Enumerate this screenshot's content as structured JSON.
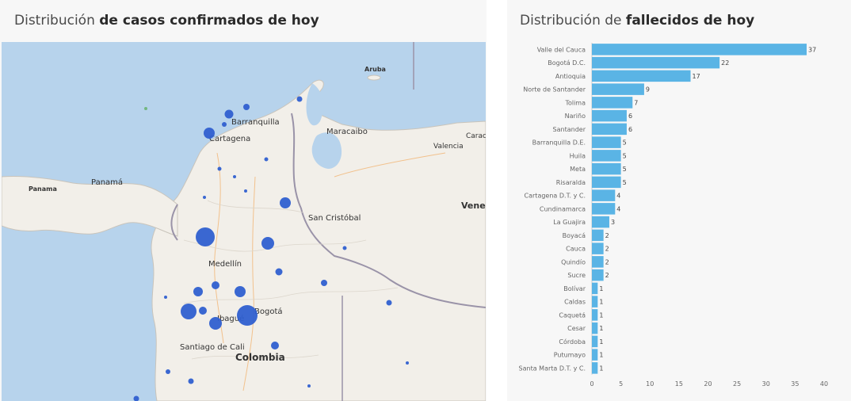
{
  "left_panel": {
    "title_prefix": "Distribución ",
    "title_bold": "de casos confirmados de hoy",
    "map_labels": {
      "aruba": "Aruba",
      "barranquilla": "Barranquilla",
      "cartagena": "Cartagena",
      "maracaibo": "Maracaibo",
      "valencia": "Valencia",
      "carac": "Carac",
      "panama_city": "Panamá",
      "panama_country": "Panama",
      "vene": "Vene",
      "san_cristobal": "San Cristóbal",
      "medellin": "Medellín",
      "ibague": "Ibagué",
      "bogota": "Bogotá",
      "santiago_de_cali": "Santiago de Cali",
      "colombia": "Colombia"
    }
  },
  "right_panel": {
    "title_prefix": "Distribución de ",
    "title_bold": "fallecidos de hoy"
  },
  "colors": {
    "bar": "#5ab4e5",
    "bubble": "#2f5fd0",
    "water": "#b7d3ec",
    "land": "#f2efe9"
  },
  "chart_data": {
    "type": "bar",
    "orientation": "horizontal",
    "categories": [
      "Valle del Cauca",
      "Bogotá D.C.",
      "Antioquia",
      "Norte de Santander",
      "Tolima",
      "Nariño",
      "Santander",
      "Barranquilla D.E.",
      "Huila",
      "Meta",
      "Risaralda",
      "Cartagena D.T. y C.",
      "Cundinamarca",
      "La Guajira",
      "Boyacá",
      "Cauca",
      "Quindío",
      "Sucre",
      "Bolívar",
      "Caldas",
      "Caquetá",
      "Cesar",
      "Córdoba",
      "Putumayo",
      "Santa Marta D.T. y C."
    ],
    "values": [
      37,
      22,
      17,
      9,
      7,
      6,
      6,
      5,
      5,
      5,
      5,
      4,
      4,
      3,
      2,
      2,
      2,
      2,
      1,
      1,
      1,
      1,
      1,
      1,
      1
    ],
    "xlim": [
      0,
      40
    ],
    "xticks": [
      0,
      5,
      10,
      15,
      20,
      25,
      30,
      35,
      40
    ],
    "title": "Distribución de fallecidos de hoy",
    "xlabel": "",
    "ylabel": "",
    "grid": false
  }
}
